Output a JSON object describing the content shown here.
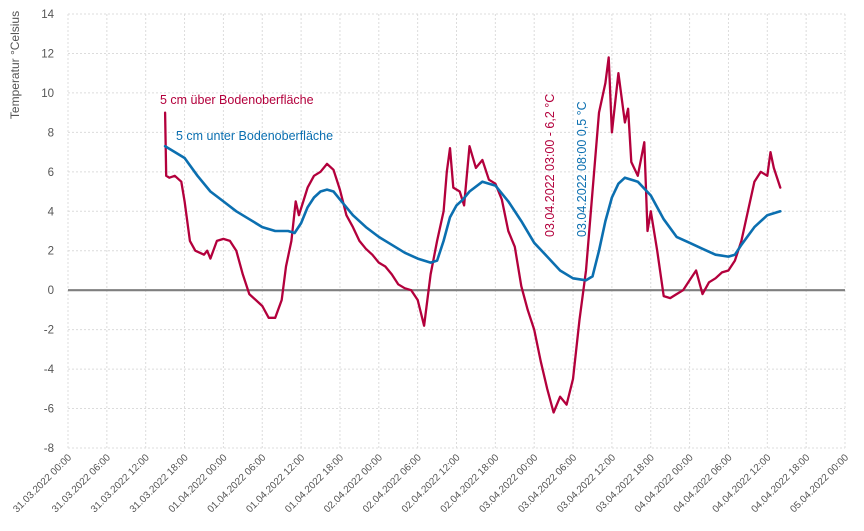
{
  "colors": {
    "series_above": "#b3003c",
    "series_below": "#0b6fb0",
    "grid": "#dcdcdc",
    "zero_line": "#7f7f7f",
    "text": "#555555"
  },
  "chart_data": {
    "type": "line",
    "title": "",
    "ylabel": "Temperatur °Celsius",
    "xlabel": "",
    "ylim": [
      -8,
      14
    ],
    "yticks": [
      -8,
      -6,
      -4,
      -2,
      0,
      2,
      4,
      6,
      8,
      10,
      12,
      14
    ],
    "xlim": [
      "2022-03-31 00:00",
      "2022-04-05 00:00"
    ],
    "xtick_labels": [
      "31.03.2022 00:00",
      "31.03.2022 06:00",
      "31.03.2022 12:00",
      "31.03.2022 18:00",
      "01.04.2022 00:00",
      "01.04.2022 06:00",
      "01.04.2022 12:00",
      "01.04.2022 18:00",
      "02.04.2022 00:00",
      "02.04.2022 06:00",
      "02.04.2022 12:00",
      "02.04.2022 18:00",
      "03.04.2022 00:00",
      "03.04.2022 06:00",
      "03.04.2022 12:00",
      "03.04.2022 18:00",
      "04.04.2022 00:00",
      "04.04.2022 06:00",
      "04.04.2022 12:00",
      "04.04.2022 18:00",
      "05.04.2022 00:00"
    ],
    "grid": true,
    "legend": "none (series labeled inline)",
    "series": [
      {
        "name": "5 cm über Bodenoberfläche",
        "color": "#b3003c",
        "points": [
          [
            "2022-03-31 15:00",
            9.0
          ],
          [
            "2022-03-31 15:10",
            5.8
          ],
          [
            "2022-03-31 15:40",
            5.7
          ],
          [
            "2022-03-31 16:30",
            5.8
          ],
          [
            "2022-03-31 17:30",
            5.5
          ],
          [
            "2022-03-31 18:00",
            4.5
          ],
          [
            "2022-03-31 18:50",
            2.5
          ],
          [
            "2022-03-31 19:40",
            2.0
          ],
          [
            "2022-03-31 21:00",
            1.8
          ],
          [
            "2022-03-31 21:30",
            2.0
          ],
          [
            "2022-03-31 22:00",
            1.6
          ],
          [
            "2022-03-31 23:00",
            2.5
          ],
          [
            "2022-04-01 00:00",
            2.6
          ],
          [
            "2022-04-01 01:00",
            2.5
          ],
          [
            "2022-04-01 02:00",
            2.0
          ],
          [
            "2022-04-01 03:00",
            0.8
          ],
          [
            "2022-04-01 04:00",
            -0.2
          ],
          [
            "2022-04-01 05:00",
            -0.5
          ],
          [
            "2022-04-01 06:00",
            -0.8
          ],
          [
            "2022-04-01 07:00",
            -1.4
          ],
          [
            "2022-04-01 08:00",
            -1.4
          ],
          [
            "2022-04-01 09:00",
            -0.5
          ],
          [
            "2022-04-01 09:40",
            1.2
          ],
          [
            "2022-04-01 10:30",
            2.5
          ],
          [
            "2022-04-01 11:10",
            4.5
          ],
          [
            "2022-04-01 11:40",
            3.8
          ],
          [
            "2022-04-01 12:20",
            4.5
          ],
          [
            "2022-04-01 13:00",
            5.2
          ],
          [
            "2022-04-01 14:00",
            5.8
          ],
          [
            "2022-04-01 15:00",
            6.0
          ],
          [
            "2022-04-01 16:00",
            6.4
          ],
          [
            "2022-04-01 17:00",
            6.1
          ],
          [
            "2022-04-01 18:00",
            5.1
          ],
          [
            "2022-04-01 19:00",
            3.8
          ],
          [
            "2022-04-01 20:00",
            3.2
          ],
          [
            "2022-04-01 21:00",
            2.5
          ],
          [
            "2022-04-01 22:00",
            2.1
          ],
          [
            "2022-04-01 23:00",
            1.8
          ],
          [
            "2022-04-02 00:00",
            1.4
          ],
          [
            "2022-04-02 01:00",
            1.2
          ],
          [
            "2022-04-02 02:00",
            0.8
          ],
          [
            "2022-04-02 03:00",
            0.3
          ],
          [
            "2022-04-02 04:00",
            0.1
          ],
          [
            "2022-04-02 05:00",
            0.0
          ],
          [
            "2022-04-02 06:00",
            -0.5
          ],
          [
            "2022-04-02 07:00",
            -1.8
          ],
          [
            "2022-04-02 08:00",
            0.8
          ],
          [
            "2022-04-02 09:00",
            2.5
          ],
          [
            "2022-04-02 10:00",
            4.0
          ],
          [
            "2022-04-02 10:30",
            6.0
          ],
          [
            "2022-04-02 11:00",
            7.2
          ],
          [
            "2022-04-02 11:30",
            5.2
          ],
          [
            "2022-04-02 12:30",
            5.0
          ],
          [
            "2022-04-02 13:10",
            4.3
          ],
          [
            "2022-04-02 14:00",
            7.3
          ],
          [
            "2022-04-02 15:00",
            6.2
          ],
          [
            "2022-04-02 16:00",
            6.6
          ],
          [
            "2022-04-02 17:00",
            5.6
          ],
          [
            "2022-04-02 18:00",
            5.4
          ],
          [
            "2022-04-02 19:00",
            4.6
          ],
          [
            "2022-04-02 20:00",
            3.0
          ],
          [
            "2022-04-02 21:00",
            2.2
          ],
          [
            "2022-04-02 22:00",
            0.2
          ],
          [
            "2022-04-02 23:00",
            -1.0
          ],
          [
            "2022-04-03 00:00",
            -2.0
          ],
          [
            "2022-04-03 01:00",
            -3.6
          ],
          [
            "2022-04-03 02:00",
            -5.0
          ],
          [
            "2022-04-03 03:00",
            -6.2
          ],
          [
            "2022-04-03 04:00",
            -5.4
          ],
          [
            "2022-04-03 05:00",
            -5.8
          ],
          [
            "2022-04-03 06:00",
            -4.5
          ],
          [
            "2022-04-03 07:00",
            -1.5
          ],
          [
            "2022-04-03 08:00",
            1.0
          ],
          [
            "2022-04-03 09:00",
            5.0
          ],
          [
            "2022-04-03 10:00",
            9.0
          ],
          [
            "2022-04-03 11:00",
            10.5
          ],
          [
            "2022-04-03 11:30",
            11.8
          ],
          [
            "2022-04-03 12:00",
            8.0
          ],
          [
            "2022-04-03 13:00",
            11.0
          ],
          [
            "2022-04-03 14:00",
            8.5
          ],
          [
            "2022-04-03 14:30",
            9.2
          ],
          [
            "2022-04-03 15:00",
            6.5
          ],
          [
            "2022-04-03 16:00",
            5.8
          ],
          [
            "2022-04-03 17:00",
            7.5
          ],
          [
            "2022-04-03 17:30",
            3.0
          ],
          [
            "2022-04-03 18:00",
            4.0
          ],
          [
            "2022-04-03 19:00",
            2.0
          ],
          [
            "2022-04-03 20:00",
            -0.3
          ],
          [
            "2022-04-03 21:00",
            -0.4
          ],
          [
            "2022-04-03 22:00",
            -0.2
          ],
          [
            "2022-04-03 23:00",
            0.0
          ],
          [
            "2022-04-04 00:00",
            0.5
          ],
          [
            "2022-04-04 01:00",
            1.0
          ],
          [
            "2022-04-04 02:00",
            -0.2
          ],
          [
            "2022-04-04 03:00",
            0.4
          ],
          [
            "2022-04-04 04:00",
            0.6
          ],
          [
            "2022-04-04 05:00",
            0.9
          ],
          [
            "2022-04-04 06:00",
            1.0
          ],
          [
            "2022-04-04 07:00",
            1.5
          ],
          [
            "2022-04-04 08:00",
            2.5
          ],
          [
            "2022-04-04 09:00",
            4.0
          ],
          [
            "2022-04-04 10:00",
            5.5
          ],
          [
            "2022-04-04 11:00",
            6.0
          ],
          [
            "2022-04-04 12:00",
            5.8
          ],
          [
            "2022-04-04 12:30",
            7.0
          ],
          [
            "2022-04-04 13:00",
            6.2
          ],
          [
            "2022-04-04 14:00",
            5.2
          ]
        ]
      },
      {
        "name": "5 cm unter Bodenoberfläche",
        "color": "#0b6fb0",
        "points": [
          [
            "2022-03-31 15:00",
            7.3
          ],
          [
            "2022-03-31 16:00",
            7.1
          ],
          [
            "2022-03-31 18:00",
            6.7
          ],
          [
            "2022-03-31 20:00",
            5.8
          ],
          [
            "2022-03-31 22:00",
            5.0
          ],
          [
            "2022-04-01 00:00",
            4.5
          ],
          [
            "2022-04-01 02:00",
            4.0
          ],
          [
            "2022-04-01 04:00",
            3.6
          ],
          [
            "2022-04-01 06:00",
            3.2
          ],
          [
            "2022-04-01 08:00",
            3.0
          ],
          [
            "2022-04-01 10:00",
            3.0
          ],
          [
            "2022-04-01 11:00",
            2.9
          ],
          [
            "2022-04-01 12:00",
            3.4
          ],
          [
            "2022-04-01 13:00",
            4.2
          ],
          [
            "2022-04-01 14:00",
            4.7
          ],
          [
            "2022-04-01 15:00",
            5.0
          ],
          [
            "2022-04-01 16:00",
            5.1
          ],
          [
            "2022-04-01 17:00",
            5.0
          ],
          [
            "2022-04-01 18:00",
            4.6
          ],
          [
            "2022-04-01 20:00",
            3.8
          ],
          [
            "2022-04-01 22:00",
            3.2
          ],
          [
            "2022-04-02 00:00",
            2.7
          ],
          [
            "2022-04-02 02:00",
            2.3
          ],
          [
            "2022-04-02 04:00",
            1.9
          ],
          [
            "2022-04-02 06:00",
            1.6
          ],
          [
            "2022-04-02 08:00",
            1.4
          ],
          [
            "2022-04-02 09:00",
            1.5
          ],
          [
            "2022-04-02 10:00",
            2.5
          ],
          [
            "2022-04-02 11:00",
            3.7
          ],
          [
            "2022-04-02 12:00",
            4.3
          ],
          [
            "2022-04-02 13:00",
            4.6
          ],
          [
            "2022-04-02 14:00",
            5.0
          ],
          [
            "2022-04-02 16:00",
            5.5
          ],
          [
            "2022-04-02 18:00",
            5.3
          ],
          [
            "2022-04-02 20:00",
            4.5
          ],
          [
            "2022-04-02 22:00",
            3.5
          ],
          [
            "2022-04-03 00:00",
            2.4
          ],
          [
            "2022-04-03 02:00",
            1.7
          ],
          [
            "2022-04-03 04:00",
            1.0
          ],
          [
            "2022-04-03 06:00",
            0.6
          ],
          [
            "2022-04-03 08:00",
            0.5
          ],
          [
            "2022-04-03 09:00",
            0.7
          ],
          [
            "2022-04-03 10:00",
            2.0
          ],
          [
            "2022-04-03 11:00",
            3.5
          ],
          [
            "2022-04-03 12:00",
            4.7
          ],
          [
            "2022-04-03 13:00",
            5.4
          ],
          [
            "2022-04-03 14:00",
            5.7
          ],
          [
            "2022-04-03 16:00",
            5.5
          ],
          [
            "2022-04-03 18:00",
            4.8
          ],
          [
            "2022-04-03 20:00",
            3.6
          ],
          [
            "2022-04-03 22:00",
            2.7
          ],
          [
            "2022-04-04 00:00",
            2.4
          ],
          [
            "2022-04-04 02:00",
            2.1
          ],
          [
            "2022-04-04 04:00",
            1.8
          ],
          [
            "2022-04-04 06:00",
            1.7
          ],
          [
            "2022-04-04 07:00",
            1.8
          ],
          [
            "2022-04-04 08:00",
            2.3
          ],
          [
            "2022-04-04 10:00",
            3.2
          ],
          [
            "2022-04-04 12:00",
            3.8
          ],
          [
            "2022-04-04 14:00",
            4.0
          ]
        ]
      }
    ],
    "annotations": [
      {
        "text": "03.04.2022  03:00  - 6,2 °C",
        "series": 0
      },
      {
        "text": "03.04.2022  08:00  0,5 °C",
        "series": 1
      }
    ]
  }
}
